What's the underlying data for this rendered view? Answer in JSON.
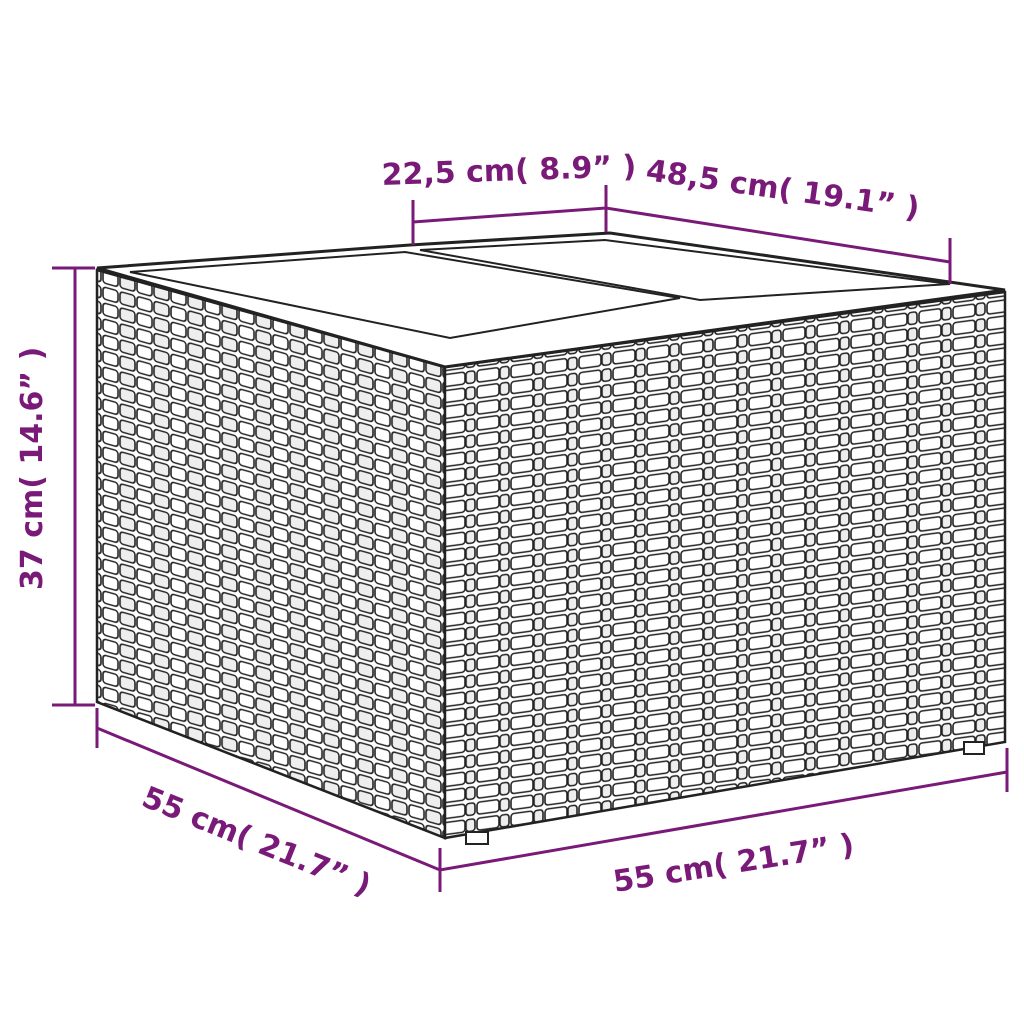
{
  "accent_color": "#7a1a78",
  "dimensions": {
    "top_panel_depth": "22,5 cm( 8.9”  )",
    "top_width": "48,5 cm( 19.1”  )",
    "height": "37 cm( 14.6”  )",
    "depth": "55 cm( 21.7”  )",
    "width": "55 cm( 21.7”  )"
  }
}
